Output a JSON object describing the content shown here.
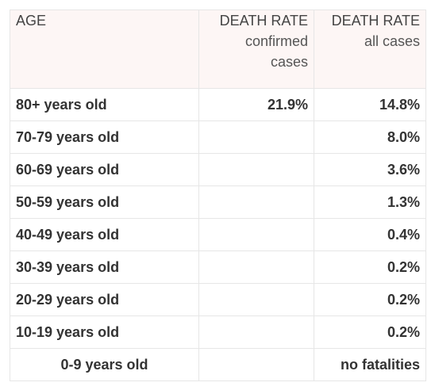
{
  "table": {
    "headers": {
      "age": "AGE",
      "confirmed": {
        "title": "DEATH RATE",
        "sub": "confirmed cases"
      },
      "all": {
        "title": "DEATH RATE",
        "sub": "all cases"
      }
    },
    "rows": [
      {
        "age": "80+ years old",
        "confirmed": "21.9%",
        "all": "14.8%"
      },
      {
        "age": "70-79 years old",
        "confirmed": "",
        "all": "8.0%"
      },
      {
        "age": "60-69 years old",
        "confirmed": "",
        "all": "3.6%"
      },
      {
        "age": "50-59 years old",
        "confirmed": "",
        "all": "1.3%"
      },
      {
        "age": "40-49 years old",
        "confirmed": "",
        "all": "0.4%"
      },
      {
        "age": "30-39 years old",
        "confirmed": "",
        "all": "0.2%"
      },
      {
        "age": "20-29 years old",
        "confirmed": "",
        "all": "0.2%"
      },
      {
        "age": "10-19 years old",
        "confirmed": "",
        "all": "0.2%"
      },
      {
        "age": "0-9 years old",
        "confirmed": "",
        "all": "no fatalities"
      }
    ]
  },
  "colors": {
    "header_bg": "#fdf6f5",
    "border": "#e6e6e6",
    "text": "#333333"
  }
}
